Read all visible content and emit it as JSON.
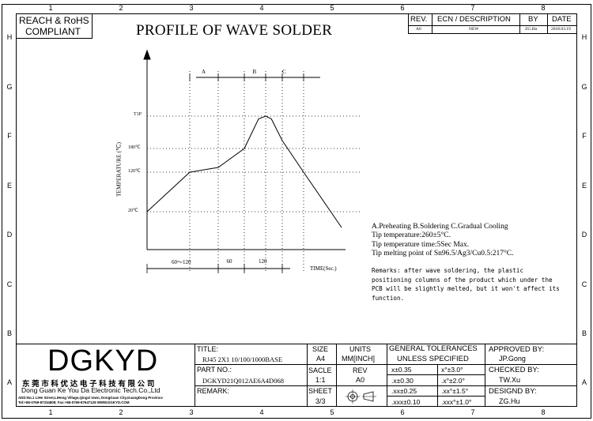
{
  "columns": [
    "1",
    "2",
    "3",
    "4",
    "5",
    "6",
    "7",
    "8"
  ],
  "rows": [
    "H",
    "G",
    "F",
    "E",
    "D",
    "C",
    "B",
    "A"
  ],
  "compliance": {
    "line1": "REACH & RoHS",
    "line2": "COMPLIANT"
  },
  "title": "PROFILE OF WAVE SOLDER",
  "revision_table": {
    "headers": {
      "rev": "REV.",
      "ecn": "ECN / DESCRIPTION",
      "by": "BY",
      "date": "DATE"
    },
    "row": {
      "rev": "A0",
      "ecn": "NEW",
      "by": "ZG.Hu",
      "date": "2018.03.19"
    }
  },
  "chart_data": {
    "type": "line",
    "ylabel": "TEMPERATURE (℃)",
    "xlabel": "TIME(Sec.)",
    "y_ticks": [
      "20℃",
      "120℃",
      "180℃",
      "T1P"
    ],
    "zones": [
      "A",
      "B",
      "C"
    ],
    "time_segments": [
      "60～120",
      "60",
      "120"
    ],
    "series": [
      {
        "x": [
          0,
          90,
          150,
          205,
          235,
          250,
          262,
          285,
          330,
          410
        ],
        "y": [
          20,
          120,
          132,
          180,
          255,
          262,
          255,
          200,
          120,
          -20
        ]
      }
    ]
  },
  "notes": {
    "line1": "A.Preheating  B.Soldering  C.Gradual Cooling",
    "line2": "Tip temperature:260±5°C.",
    "line3": "Tip temperature time:5Sec Max.",
    "line4": "Tip melting point of Sn96.5/Ag3/Cu0.5:217°C.",
    "remarks": [
      "Remarks: after wave soldering, the plastic",
      "positioning columns of the product  which under the",
      "PCB will be slightly melted, but it won't affect its",
      "function."
    ]
  },
  "company": {
    "logo": "DGKYD",
    "name_cn": "东 莞 市 科 优 达 电 子 科 技 有 限 公 司",
    "name_en": "Dong Guan Ke You Da Electronic Tech.Co.,Ltd",
    "address": "ADD:No.1 LiHe Street,LiHeng Village,Qingxi town, DongGuan City,GuangDong Province",
    "contact": "Tel:+86-0769-87334808; Fax:+86-0769-87647129  WWW.DGKYD.COM"
  },
  "titleblock": {
    "title_label": "TITLE:",
    "title_value": "RJ45 2X1 10/100/1000BASE",
    "part_label": "PART NO.:",
    "part_value": "DGKYD21Q012AE6A4D068",
    "remark_label": "REMARK:",
    "size_label": "SIZE",
    "size_value": "A4",
    "units_label": "UNITS",
    "units_value": "MM[INCH]",
    "scale_label": "SACLE",
    "scale_value": "1:1",
    "rev_label": "REV",
    "rev_value": "A0",
    "sheet_label": "SHEET",
    "sheet_value": "3/3",
    "tol_header1": "GENERAL TOLERANCES",
    "tol_header2": "UNLESS SPECIFIED",
    "tolerances": [
      [
        "x±0.35",
        "x°±3.0°"
      ],
      [
        ".x±0.30",
        ".x°±2.0°"
      ],
      [
        ".xx±0.25",
        ".xx°±1.5°"
      ],
      [
        ".xxx±0.10",
        ".xxx°±1.0°"
      ]
    ],
    "approved_label": "APPROVED BY:",
    "approved_value": "JP.Gong",
    "checked_label": "CHECKED BY:",
    "checked_value": "TW.Xu",
    "designed_label": "DESIGND BY:",
    "designed_value": "ZG.Hu"
  }
}
